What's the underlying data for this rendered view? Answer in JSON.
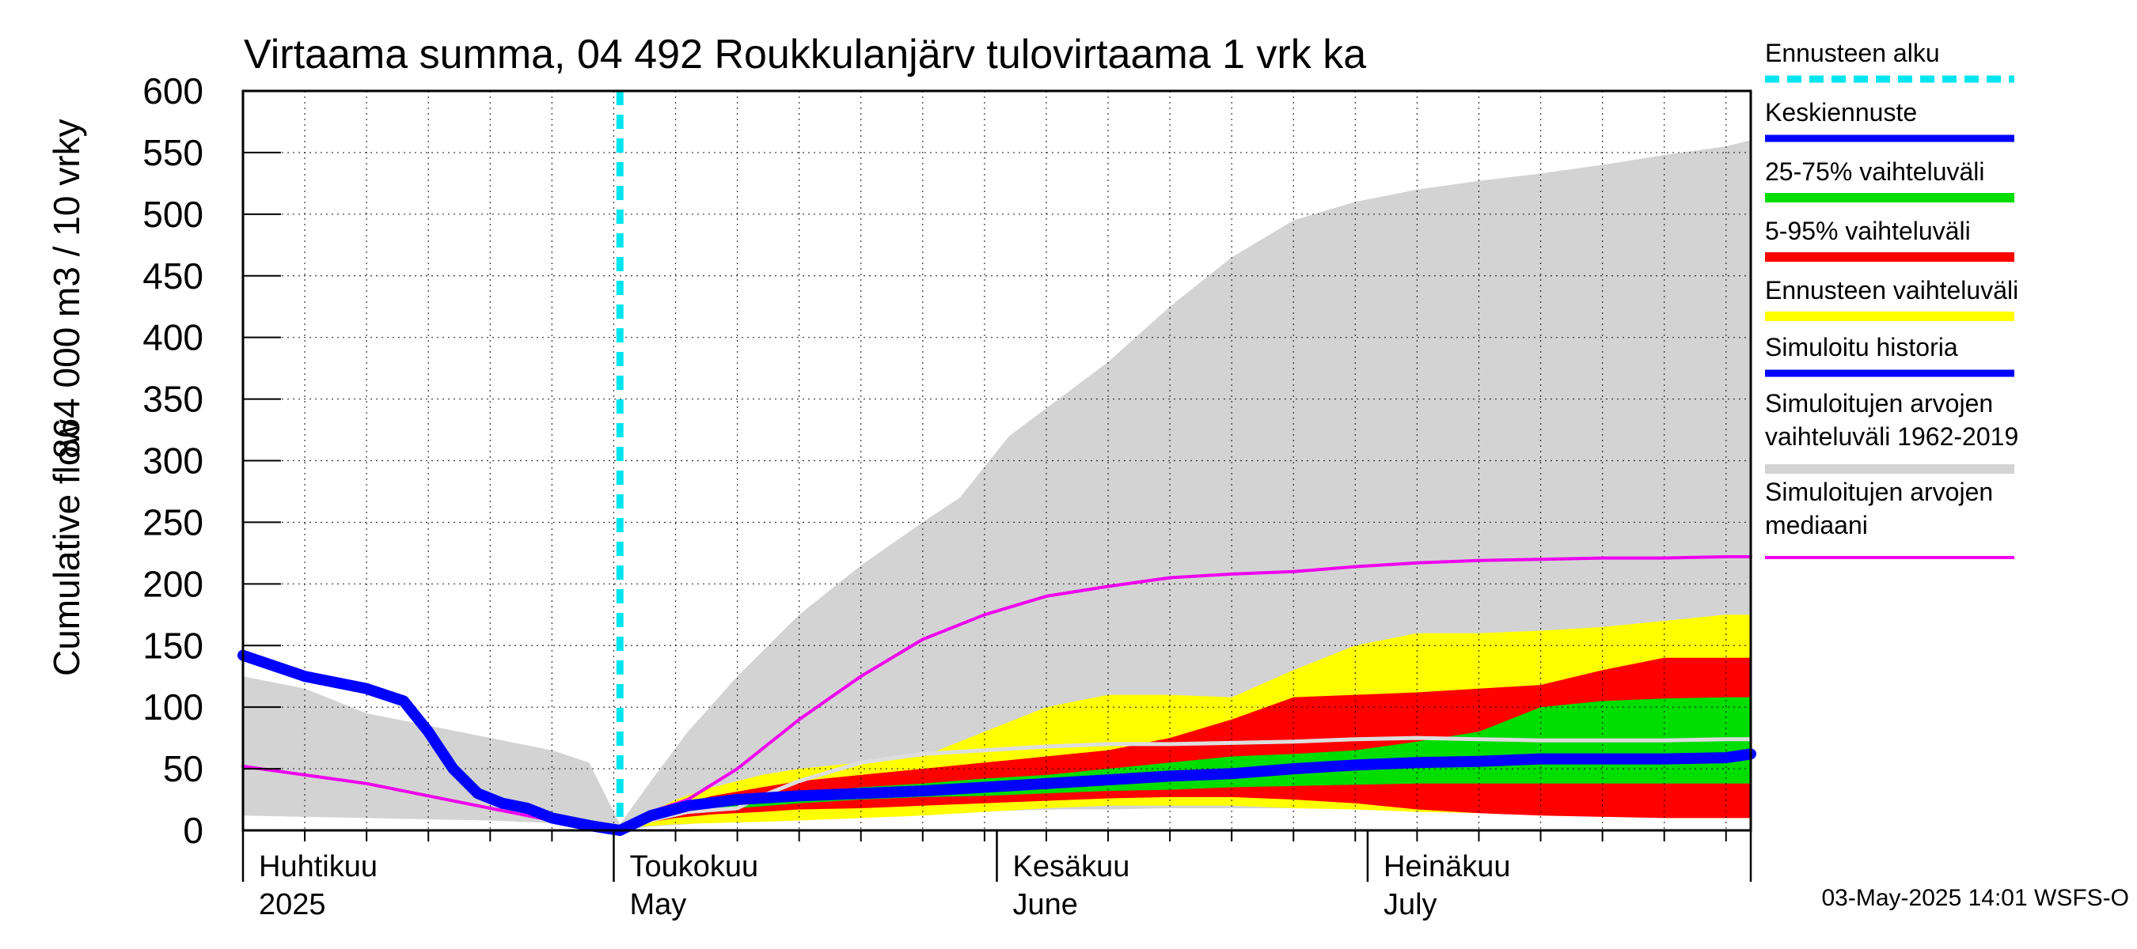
{
  "chart_data": {
    "type": "area",
    "title": "Virtaama summa, 04 492 Roukkulanjärv tulovirtaama 1 vrk ka",
    "ylabel_line1": "Cumulative flow",
    "ylabel_line2": "864 000 m3 / 10 vrky",
    "ylim": [
      0,
      600
    ],
    "yticks": [
      0,
      50,
      100,
      150,
      200,
      250,
      300,
      350,
      400,
      450,
      500,
      550,
      600
    ],
    "x_domain_days": [
      0,
      122
    ],
    "x_unit": "days since 2025-04-01",
    "month_labels": [
      {
        "day": 0,
        "line1": "Huhtikuu",
        "line2": "2025"
      },
      {
        "day": 30,
        "line1": "Toukokuu",
        "line2": "May"
      },
      {
        "day": 61,
        "line1": "Kesäkuu",
        "line2": "June"
      },
      {
        "day": 91,
        "line1": "Heinäkuu",
        "line2": "July"
      }
    ],
    "forecast_start_day": 30.5,
    "series": [
      {
        "name": "Simuloitujen arvojen vaihteluväli 1962-2019",
        "kind": "band",
        "color": "#d3d3d3",
        "x": [
          0,
          5,
          10,
          15,
          20,
          25,
          28,
          30.5,
          33,
          36,
          40,
          45,
          50,
          55,
          58,
          62,
          66,
          70,
          75,
          80,
          85,
          90,
          95,
          100,
          105,
          110,
          115,
          120,
          122
        ],
        "upper": [
          125,
          115,
          95,
          85,
          75,
          65,
          55,
          5,
          40,
          80,
          125,
          175,
          215,
          250,
          270,
          320,
          350,
          380,
          425,
          465,
          495,
          510,
          520,
          527,
          533,
          540,
          548,
          555,
          560
        ],
        "lower": [
          12,
          11,
          10,
          9,
          8,
          6,
          4,
          0,
          3,
          5,
          8,
          10,
          12,
          14,
          15,
          16,
          17,
          17,
          18,
          18,
          18,
          18,
          18,
          18,
          18,
          18,
          18,
          18,
          18
        ]
      },
      {
        "name": "Ennusteen vaihteluväli",
        "kind": "band",
        "color": "#ffff00",
        "x": [
          30.5,
          32,
          35,
          38,
          42,
          45,
          50,
          55,
          60,
          65,
          70,
          75,
          80,
          85,
          90,
          95,
          100,
          105,
          110,
          115,
          120,
          122
        ],
        "upper": [
          0,
          10,
          25,
          35,
          45,
          50,
          55,
          60,
          80,
          100,
          110,
          110,
          108,
          130,
          150,
          160,
          160,
          162,
          165,
          170,
          175,
          175
        ],
        "lower": [
          0,
          3,
          5,
          6,
          7,
          8,
          10,
          12,
          15,
          18,
          20,
          20,
          20,
          18,
          17,
          15,
          14,
          13,
          12,
          10,
          10,
          10
        ]
      },
      {
        "name": "5-95% vaihteluväli",
        "kind": "band",
        "color": "#ff0000",
        "x": [
          30.5,
          32,
          35,
          38,
          42,
          45,
          50,
          55,
          60,
          65,
          70,
          75,
          80,
          85,
          90,
          95,
          100,
          105,
          110,
          115,
          120,
          122
        ],
        "upper": [
          0,
          8,
          20,
          28,
          35,
          40,
          45,
          50,
          55,
          60,
          65,
          75,
          90,
          108,
          110,
          112,
          115,
          118,
          130,
          140,
          140,
          140
        ],
        "lower": [
          0,
          5,
          10,
          13,
          15,
          17,
          18,
          20,
          22,
          24,
          26,
          27,
          27,
          25,
          22,
          17,
          14,
          12,
          11,
          10,
          10,
          10
        ]
      },
      {
        "name": "25-75% vaihteluväli",
        "kind": "band",
        "color": "#00dd00",
        "x": [
          30.5,
          35,
          40,
          45,
          50,
          55,
          60,
          65,
          70,
          75,
          80,
          85,
          90,
          95,
          100,
          105,
          110,
          115,
          120,
          122
        ],
        "upper": [
          0,
          18,
          25,
          30,
          35,
          38,
          42,
          45,
          50,
          55,
          60,
          62,
          65,
          72,
          80,
          100,
          105,
          107,
          108,
          108
        ],
        "lower": [
          0,
          14,
          18,
          22,
          25,
          27,
          28,
          30,
          32,
          33,
          35,
          36,
          37,
          38,
          38,
          38,
          38,
          38,
          38,
          38
        ]
      },
      {
        "name": "Simuloitujen arvojen mediaani (grey)",
        "kind": "line",
        "color": "#dddddd",
        "width": 5,
        "x": [
          30.5,
          33,
          36,
          40,
          42,
          45,
          50,
          55,
          60,
          65,
          70,
          75,
          80,
          85,
          90,
          95,
          100,
          105,
          110,
          115,
          120,
          122
        ],
        "values": [
          0,
          8,
          15,
          18,
          28,
          40,
          55,
          62,
          65,
          68,
          70,
          70,
          71,
          72,
          74,
          75,
          74,
          73,
          73,
          73,
          74,
          74
        ]
      },
      {
        "name": "Simuloitujen arvojen mediaani",
        "kind": "line",
        "color": "#ee00ee",
        "width": 4,
        "x": [
          0,
          5,
          10,
          15,
          20,
          25,
          30.5,
          33,
          36,
          40,
          45,
          50,
          55,
          60,
          65,
          70,
          75,
          80,
          85,
          90,
          95,
          100,
          105,
          110,
          115,
          120,
          122
        ],
        "values": [
          52,
          45,
          38,
          28,
          18,
          8,
          0,
          15,
          25,
          50,
          90,
          125,
          155,
          175,
          190,
          198,
          205,
          208,
          210,
          214,
          217,
          219,
          220,
          221,
          221,
          222,
          222
        ]
      },
      {
        "name": "Simuloitu historia",
        "kind": "line",
        "color": "#0000ff",
        "width": 14,
        "x": [
          0,
          5,
          10,
          13,
          15,
          17,
          19,
          21,
          23,
          25,
          28,
          30.5
        ],
        "values": [
          142,
          125,
          115,
          105,
          80,
          50,
          30,
          22,
          18,
          10,
          4,
          0
        ]
      },
      {
        "name": "Keskiennuste",
        "kind": "line",
        "color": "#0000ff",
        "width": 14,
        "x": [
          30.5,
          33,
          36,
          40,
          45,
          50,
          55,
          60,
          65,
          70,
          75,
          80,
          85,
          90,
          95,
          100,
          105,
          110,
          115,
          120,
          122
        ],
        "values": [
          0,
          12,
          20,
          25,
          28,
          30,
          32,
          35,
          38,
          41,
          44,
          46,
          50,
          53,
          55,
          56,
          58,
          58,
          58,
          59,
          62
        ]
      }
    ],
    "legend": [
      {
        "label": "Ennusteen alku",
        "color": "#00e5ee",
        "style": "dashed"
      },
      {
        "label": "Keskiennuste",
        "color": "#0000ff",
        "style": "solid"
      },
      {
        "label": "25-75% vaihteluväli",
        "color": "#00dd00",
        "style": "solid"
      },
      {
        "label": "5-95% vaihteluväli",
        "color": "#ff0000",
        "style": "solid"
      },
      {
        "label": "Ennusteen vaihteluväli",
        "color": "#ffff00",
        "style": "solid"
      },
      {
        "label": "Simuloitu historia",
        "color": "#0000ff",
        "style": "solid"
      },
      {
        "label": "Simuloitujen arvojen vaihteluväli 1962-2019",
        "label_line1": "Simuloitujen arvojen",
        "label_line2": "vaihteluväli 1962-2019",
        "color": "#d3d3d3",
        "style": "solid"
      },
      {
        "label": "Simuloitujen arvojen mediaani",
        "label_line1": "Simuloitujen arvojen",
        "label_line2": "mediaani",
        "color": "#ee00ee",
        "style": "thin"
      }
    ],
    "footer": "03-May-2025 14:01 WSFS-O"
  }
}
